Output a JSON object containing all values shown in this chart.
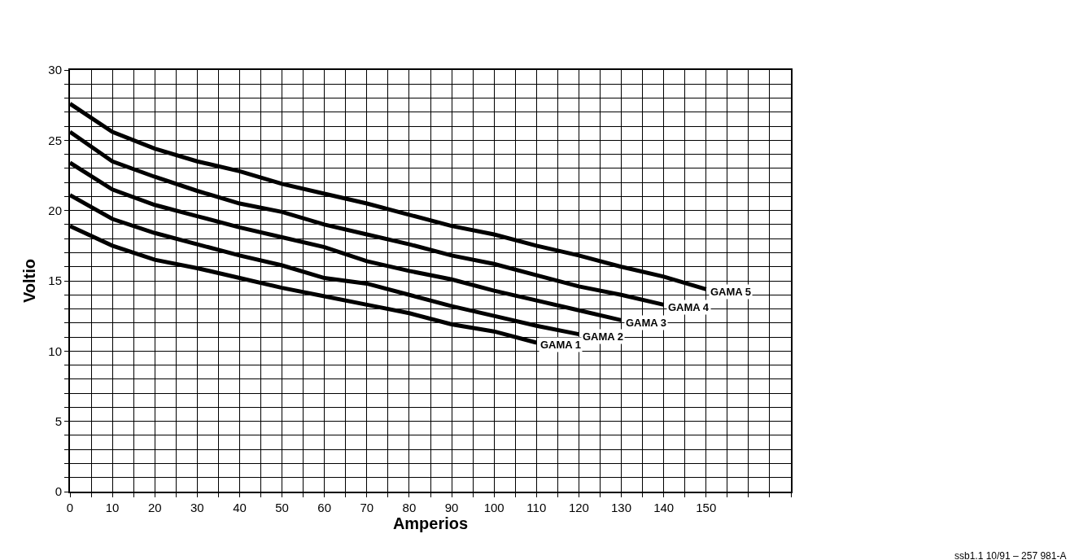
{
  "chart_data": {
    "type": "line",
    "xlabel": "Amperios",
    "ylabel": "Voltio",
    "legend": false,
    "grid": true,
    "marker": "none",
    "line_style": "solid",
    "xlim": [
      0,
      170
    ],
    "ylim": [
      0,
      30
    ],
    "xticks": [
      0,
      {
        "value": 5,
        "label": null
      },
      10,
      {
        "value": 15,
        "label": null
      },
      20,
      {
        "value": 25,
        "label": null
      },
      30,
      {
        "value": 35,
        "label": null
      },
      40,
      {
        "value": 45,
        "label": null
      },
      50,
      {
        "value": 55,
        "label": null
      },
      60,
      {
        "value": 65,
        "label": null
      },
      70,
      {
        "value": 75,
        "label": null
      },
      80,
      {
        "value": 85,
        "label": null
      },
      90,
      {
        "value": 95,
        "label": null
      },
      100,
      {
        "value": 105,
        "label": null
      },
      110,
      {
        "value": 115,
        "label": null
      },
      120,
      {
        "value": 125,
        "label": null
      },
      130,
      {
        "value": 135,
        "label": null
      },
      140,
      {
        "value": 145,
        "label": null
      },
      150,
      {
        "value": 155,
        "label": null
      },
      {
        "value": 160,
        "label": null
      },
      {
        "value": 165,
        "label": null
      },
      {
        "value": 170,
        "label": null
      }
    ],
    "yticks": [
      0,
      {
        "value": 1,
        "label": null
      },
      {
        "value": 2,
        "label": null
      },
      {
        "value": 3,
        "label": null
      },
      {
        "value": 4,
        "label": null
      },
      5,
      {
        "value": 6,
        "label": null
      },
      {
        "value": 7,
        "label": null
      },
      {
        "value": 8,
        "label": null
      },
      {
        "value": 9,
        "label": null
      },
      10,
      {
        "value": 11,
        "label": null
      },
      {
        "value": 12,
        "label": null
      },
      {
        "value": 13,
        "label": null
      },
      {
        "value": 14,
        "label": null
      },
      15,
      {
        "value": 16,
        "label": null
      },
      {
        "value": 17,
        "label": null
      },
      {
        "value": 18,
        "label": null
      },
      {
        "value": 19,
        "label": null
      },
      20,
      {
        "value": 21,
        "label": null
      },
      {
        "value": 22,
        "label": null
      },
      {
        "value": 23,
        "label": null
      },
      {
        "value": 24,
        "label": null
      },
      25,
      {
        "value": 26,
        "label": null
      },
      {
        "value": 27,
        "label": null
      },
      {
        "value": 28,
        "label": null
      },
      {
        "value": 29,
        "label": null
      },
      30
    ],
    "x": [
      0,
      10,
      20,
      30,
      40,
      50,
      60,
      70,
      80,
      90,
      100,
      110,
      120,
      130,
      140,
      150
    ],
    "series": [
      {
        "name": "GAMA 1",
        "color": "#000000",
        "values": [
          18.9,
          17.5,
          16.5,
          15.9,
          15.2,
          14.5,
          13.9,
          13.3,
          12.7,
          11.9,
          11.4,
          10.6,
          null,
          null,
          null,
          null
        ]
      },
      {
        "name": "GAMA 2",
        "color": "#000000",
        "values": [
          21.1,
          19.4,
          18.4,
          17.6,
          16.8,
          16.1,
          15.2,
          14.8,
          14.0,
          13.2,
          12.5,
          11.8,
          11.2,
          null,
          null,
          null
        ]
      },
      {
        "name": "GAMA 3",
        "color": "#000000",
        "values": [
          23.4,
          21.5,
          20.4,
          19.6,
          18.8,
          18.1,
          17.4,
          16.4,
          15.7,
          15.1,
          14.3,
          13.6,
          12.9,
          12.2,
          null,
          null
        ]
      },
      {
        "name": "GAMA 4",
        "color": "#000000",
        "values": [
          25.6,
          23.5,
          22.4,
          21.4,
          20.5,
          19.9,
          19.0,
          18.3,
          17.6,
          16.8,
          16.2,
          15.4,
          14.6,
          14.0,
          13.3,
          null
        ]
      },
      {
        "name": "GAMA 5",
        "color": "#000000",
        "values": [
          27.6,
          25.6,
          24.4,
          23.5,
          22.8,
          21.9,
          21.2,
          20.5,
          19.7,
          18.9,
          18.3,
          17.5,
          16.8,
          16.0,
          15.3,
          14.4
        ]
      }
    ],
    "annotations": [
      "ssb1.1 10/91 – 257 981-A"
    ]
  }
}
